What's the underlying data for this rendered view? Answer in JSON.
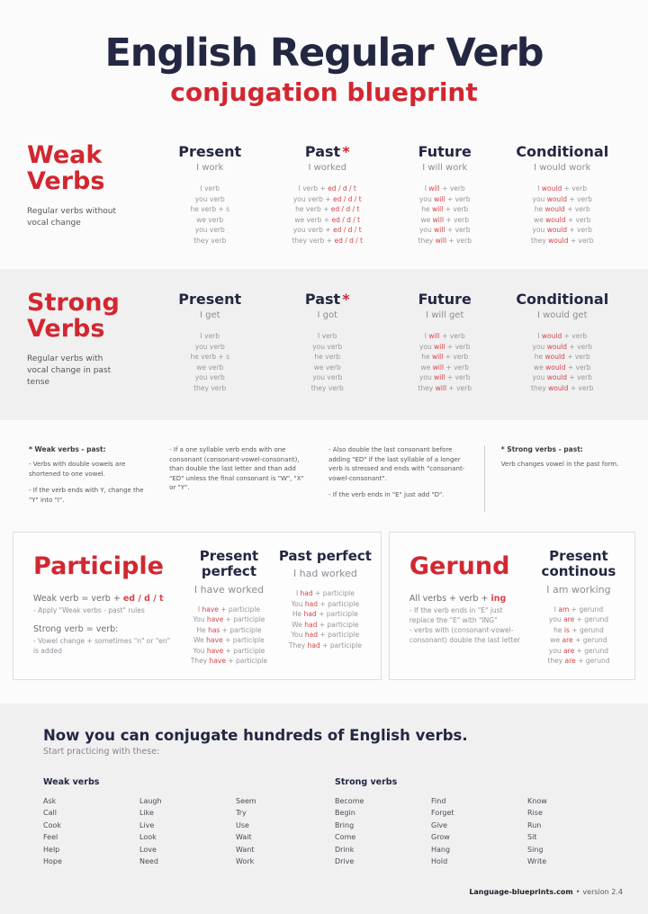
{
  "header": {
    "title": "English Regular Verb",
    "subtitle": "conjugation blueprint"
  },
  "sections": {
    "weak": {
      "title": "Weak Verbs",
      "description": "Regular verbs without vocal change",
      "columns": [
        {
          "heading": "Present",
          "example": "I work",
          "lines": [
            "I verb",
            "you verb",
            "he verb + s",
            "we verb",
            "you verb",
            "they verb"
          ]
        },
        {
          "heading": "Past",
          "star": "*",
          "example": "I worked",
          "lines": [
            "I verb + *ed / d / t*",
            "you verb + *ed / d / t*",
            "he verb + *ed / d / t*",
            "we verb + *ed / d / t*",
            "you verb + *ed / d / t*",
            "they verb + *ed / d / t*"
          ]
        },
        {
          "heading": "Future",
          "example": "I will work",
          "lines": [
            "I *will* + verb",
            "you *will* + verb",
            "he *will* + verb",
            "we *will* + verb",
            "you *will* + verb",
            "they *will* + verb"
          ]
        },
        {
          "heading": "Conditional",
          "example": "I would work",
          "lines": [
            "I *would* + verb",
            "you *would* + verb",
            "he *would* + verb",
            "we *would* + verb",
            "you *would* + verb",
            "they *would* + verb"
          ]
        }
      ]
    },
    "strong": {
      "title": "Strong Verbs",
      "description": "Regular verbs with vocal change in past tense",
      "columns": [
        {
          "heading": "Present",
          "example": "I get",
          "lines": [
            "I verb",
            "you verb",
            "he verb + s",
            "we verb",
            "you verb",
            "they verb"
          ]
        },
        {
          "heading": "Past",
          "star": "*",
          "example": "I got",
          "lines": [
            "I verb",
            "you verb",
            "he verb",
            "we verb",
            "you verb",
            "they verb"
          ]
        },
        {
          "heading": "Future",
          "example": "I will get",
          "lines": [
            "I *will* + verb",
            "you *will* + verb",
            "he *will* + verb",
            "we *will* + verb",
            "you *will* + verb",
            "they *will* + verb"
          ]
        },
        {
          "heading": "Conditional",
          "example": "I would get",
          "lines": [
            "I *would* + verb",
            "you *would* + verb",
            "he *would* + verb",
            "we *would* + verb",
            "you *would* + verb",
            "they *would* + verb"
          ]
        }
      ]
    }
  },
  "footnotes": [
    {
      "title": "* Weak verbs - past:",
      "paragraphs": [
        "- Verbs with double vowels are shortened to one vowel.",
        "- If the verb ends with Y, change the \"Y\" into \"I\"."
      ]
    },
    {
      "title": "",
      "paragraphs": [
        "- If a one syllable verb ends with one consonant (consonant-vowel-consonant), than double the last letter and than add \"ED\" unless the final consonant is \"W\", \"X\" or \"Y\"."
      ]
    },
    {
      "title": "",
      "paragraphs": [
        "- Also double the last consonant before adding \"ED\" if the last syllable of a longer verb is stressed and ends with \"consonant-vowel-consonant\".",
        "- If the verb ends in \"E\" just add \"D\"."
      ]
    },
    {
      "title": "* Strong verbs - past:",
      "paragraphs": [
        "Verb changes vowel in the past form."
      ]
    }
  ],
  "participle": {
    "title": "Participle",
    "intro": [
      "Weak verb = verb + *ed / d / t*",
      "- Apply \"Weak verbs - past\" rules",
      "",
      "Strong verb = verb:",
      "- Vowel change + sometimes \"n\" or \"en\" is added"
    ],
    "columns": [
      {
        "heading": "Present perfect",
        "example": "I have worked",
        "lines": [
          "I *have* + participle",
          "You *have* + participle",
          "He *has* + participle",
          "We *have* + participle",
          "You *have* + participle",
          "They *have* + participle"
        ]
      },
      {
        "heading": "Past perfect",
        "example": "I had worked",
        "lines": [
          "I *had* + participle",
          "You *had* + participle",
          "He *had* + participle",
          "We *had* + participle",
          "You *had* + participle",
          "They *had* + participle"
        ]
      }
    ]
  },
  "gerund": {
    "title": "Gerund",
    "intro": [
      "All verbs + verb + *ing*",
      "- If the verb ends in \"E\" just replace the \"E\" with \"ING\"",
      "- verbs with (consonant-vowel-consonant) double the last letter"
    ],
    "column": {
      "heading": "Present continous",
      "example": "I am working",
      "lines": [
        "I *am* + gerund",
        "you *are* + gerund",
        "he *is* + gerund",
        "we *are* + gerund",
        "you *are* + gerund",
        "they *are* + gerund"
      ]
    }
  },
  "practice": {
    "title": "Now you can conjugate hundreds of English verbs.",
    "subtitle": "Start practicing with these:",
    "weak_label": "Weak verbs",
    "strong_label": "Strong verbs",
    "weak_columns": [
      [
        "Ask",
        "Call",
        "Cook",
        "Feel",
        "Help",
        "Hope"
      ],
      [
        "Laugh",
        "Like",
        "Live",
        "Look",
        "Love",
        "Need"
      ],
      [
        "Seem",
        "Try",
        "Use",
        "Wait",
        "Want",
        "Work"
      ]
    ],
    "strong_columns": [
      [
        "Become",
        "Begin",
        "Bring",
        "Come",
        "Drink",
        "Drive"
      ],
      [
        "Find",
        "Forget",
        "Give",
        "Grow",
        "Hang",
        "Hold"
      ],
      [
        "Know",
        "Rise",
        "Run",
        "Sit",
        "Sing",
        "Write"
      ]
    ]
  },
  "footer": {
    "brand": "Language-blueprints.com",
    "separator": "•",
    "version": "version 2.4"
  },
  "colors": {
    "navy": "#232742",
    "red": "#d22730",
    "highlight": "#d8444a",
    "band": "#f1f0f1"
  }
}
